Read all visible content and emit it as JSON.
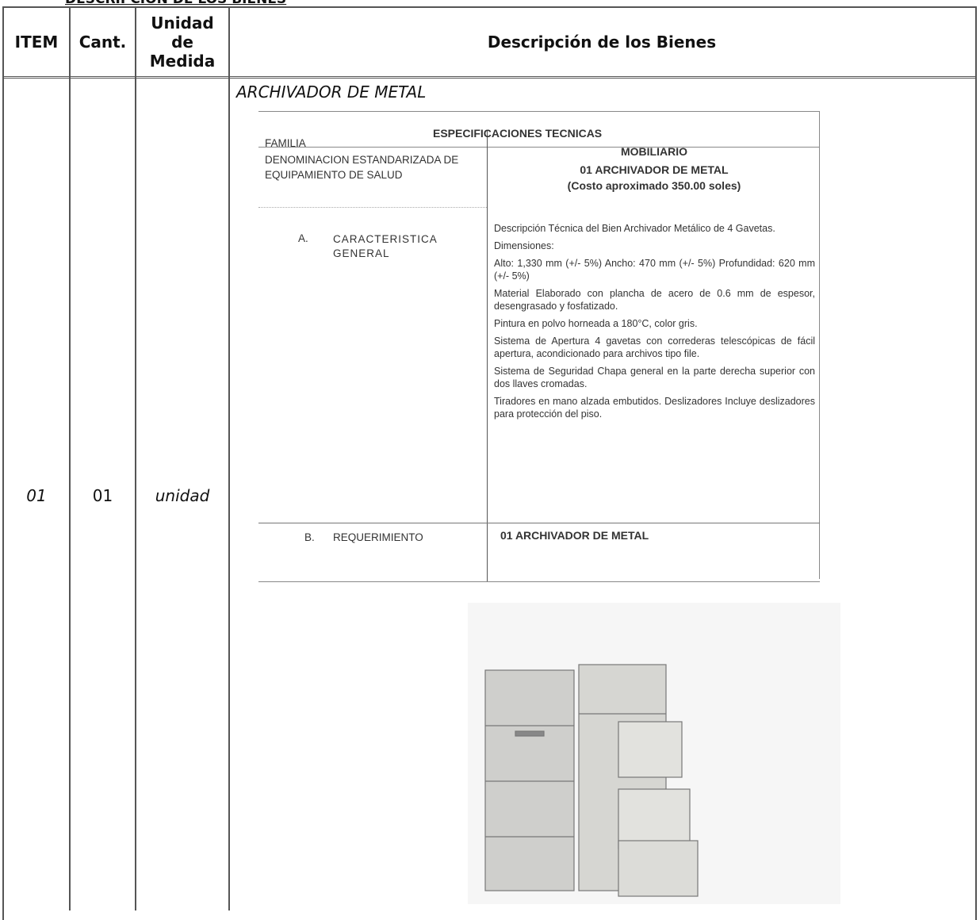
{
  "section_title": "DESCRIPCION DE LOS BIENES",
  "table": {
    "headers": [
      "ITEM",
      "Cant.",
      "Unidad de Medida",
      "Descripción de los Bienes"
    ],
    "rows": [
      [
        "01",
        "01",
        "unidad"
      ]
    ]
  },
  "item": {
    "name": "ARCHIVADOR DE METAL",
    "spec": {
      "title": "ESPECIFICACIONES TECNICAS",
      "family_label": "FAMILIA",
      "family_value": "MOBILIARIO",
      "denomination_label": "DENOMINACION ESTANDARIZADA DE EQUIPAMIENTO DE SALUD",
      "denomination_value": [
        "01 ARCHIVADOR DE METAL",
        "(Costo aproximado 350.00 soles)"
      ],
      "section_a": {
        "letter": "A.",
        "label": "CARACTERISTICA GENERAL",
        "paragraphs": [
          "Descripción Técnica del Bien Archivador Metálico de 4 Gavetas.",
          "Dimensiones:",
          "Alto: 1,330 mm (+/- 5%) Ancho: 470 mm (+/- 5%) Profundidad: 620 mm (+/- 5%)",
          "Material Elaborado con plancha de acero de 0.6 mm de espesor, desengrasado y fosfatizado.",
          "Pintura en polvo horneada a 180°C, color gris.",
          "Sistema de Apertura 4 gavetas con correderas telescópicas de fácil apertura, acondicionado para archivos tipo file.",
          "Sistema de Seguridad Chapa general en la parte derecha superior con dos llaves cromadas.",
          "Tiradores en mano alzada embutidos. Deslizadores Incluye deslizadores para protección del piso."
        ]
      },
      "section_b": {
        "letter": "B.",
        "label": "REQUERIMIENTO",
        "value": "01 ARCHIVADOR DE METAL"
      }
    }
  }
}
